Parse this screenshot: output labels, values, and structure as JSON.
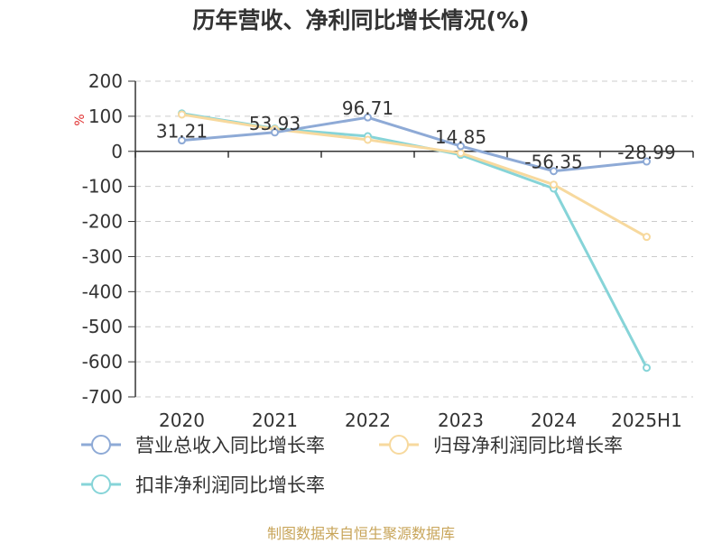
{
  "chart_data": {
    "type": "line",
    "title": "历年营收、净利同比增长情况(%)",
    "ylabel": "%",
    "categories": [
      "2020",
      "2021",
      "2022",
      "2023",
      "2024",
      "2025H1"
    ],
    "ylim": [
      -700,
      200
    ],
    "yticks": [
      200,
      100,
      0,
      -100,
      -200,
      -300,
      -400,
      -500,
      -600,
      -700
    ],
    "grid": true,
    "legend_position": "bottom",
    "series": [
      {
        "name": "营业总收入同比增长率",
        "color": "#8eaad6",
        "values": [
          31.21,
          53.93,
          96.71,
          14.85,
          -56.35,
          -28.99
        ],
        "show_labels": true
      },
      {
        "name": "归母净利润同比增长率",
        "color": "#f7d99e",
        "values": [
          105,
          63,
          33,
          -5,
          -95,
          -244
        ],
        "show_labels": false
      },
      {
        "name": "扣非净利润同比增长率",
        "color": "#86d4d8",
        "values": [
          108,
          65,
          43,
          -10,
          -106,
          -617
        ],
        "show_labels": false
      }
    ]
  },
  "source_text": "制图数据来自恒生聚源数据库"
}
